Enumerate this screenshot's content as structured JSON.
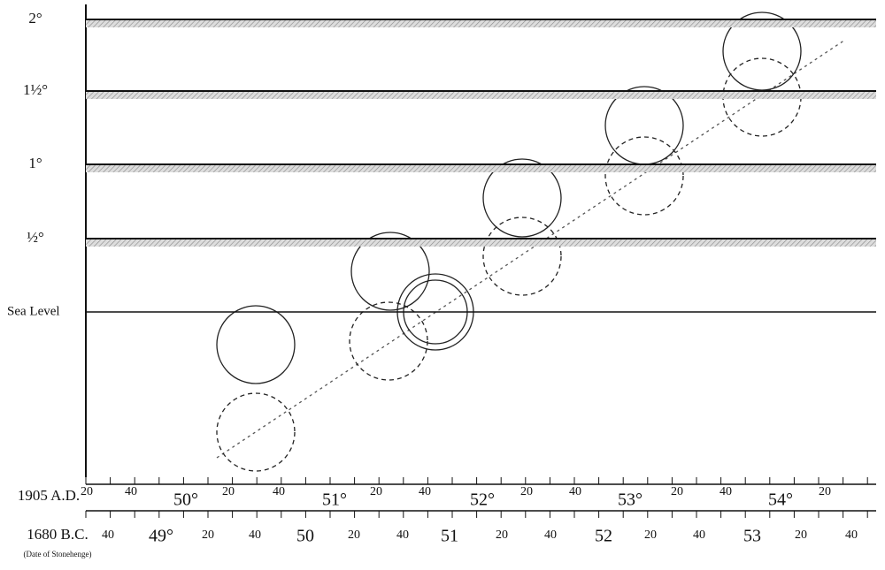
{
  "levels": [
    "2°",
    "1½°",
    "1°",
    "½°",
    "Sea Level"
  ],
  "scale_1905": {
    "label": "1905 A.D.",
    "ticks": [
      "20",
      "40",
      "50°",
      "20",
      "40",
      "51°",
      "20",
      "40",
      "52°",
      "20",
      "40",
      "53°",
      "20",
      "40",
      "54°",
      "20"
    ]
  },
  "scale_1680": {
    "label": "1680 B.C.",
    "note": "(Date of Stonehenge)",
    "ticks": [
      "40",
      "49°",
      "20",
      "40",
      "50",
      "20",
      "40",
      "51",
      "20",
      "40",
      "52",
      "20",
      "40",
      "53",
      "20",
      "40"
    ]
  }
}
